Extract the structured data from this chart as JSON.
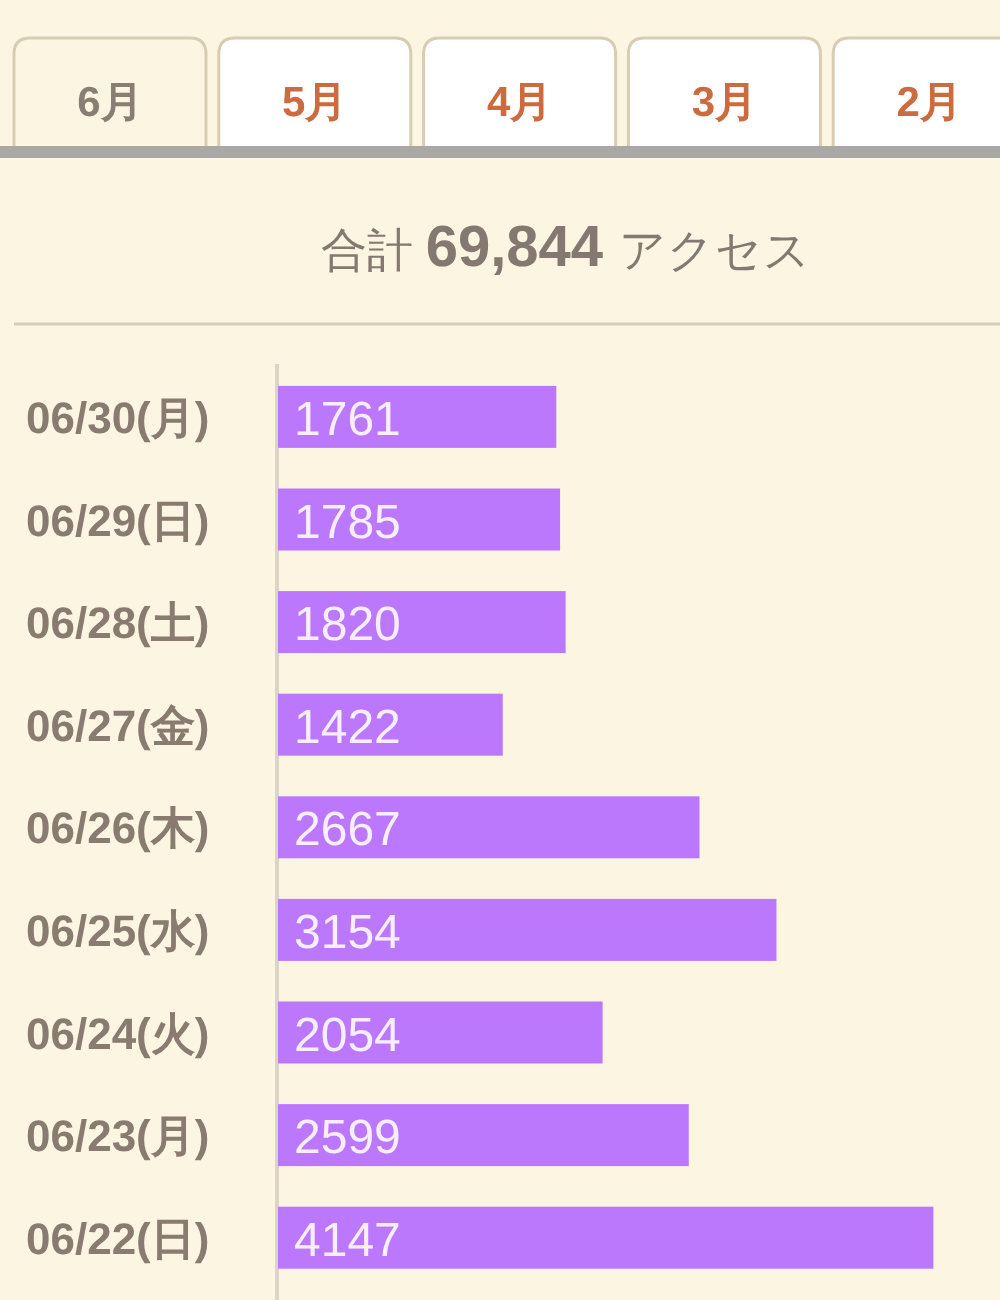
{
  "chart_data": {
    "type": "bar",
    "orientation": "horizontal",
    "title": "合計 69,844 アクセス",
    "annotations": [
      "6月",
      "5月",
      "4月",
      "3月",
      "2月"
    ],
    "categories": [
      "06/30(月)",
      "06/29(日)",
      "06/28(土)",
      "06/27(金)",
      "06/26(木)",
      "06/25(水)",
      "06/24(火)",
      "06/23(月)",
      "06/22(日)"
    ],
    "values": [
      1761,
      1785,
      1820,
      1422,
      2667,
      3154,
      2054,
      2599,
      4147
    ],
    "color": "#bb78fd",
    "data_labels": true,
    "tick_labels": "y"
  }
}
